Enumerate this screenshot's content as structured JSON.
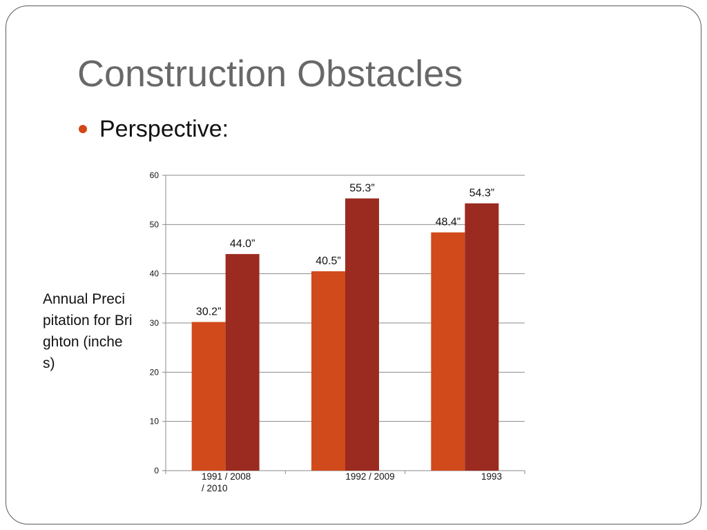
{
  "slide": {
    "title": "Construction Obstacles",
    "bullet": "Perspective:"
  },
  "chart_data": {
    "type": "bar",
    "title": "",
    "xlabel": "",
    "ylabel": "Annual Precipitation for Brighton (inches)",
    "ylim": [
      0,
      60
    ],
    "yticks": [
      0,
      10,
      20,
      30,
      40,
      50,
      60
    ],
    "grid": true,
    "legend": "none",
    "categories": [
      "1991 / 2008 / 2010",
      "1992 / 2009",
      "1993"
    ],
    "series": [
      {
        "values": [
          30.2,
          40.5,
          48.4
        ],
        "labels": [
          "30.2”",
          "40.5”",
          "48.4”"
        ],
        "color": "#d14a1b"
      },
      {
        "values": [
          44.0,
          55.3,
          54.3
        ],
        "labels": [
          "44.0”",
          "55.3”",
          "54.3”"
        ],
        "color": "#9b2b20"
      }
    ]
  }
}
